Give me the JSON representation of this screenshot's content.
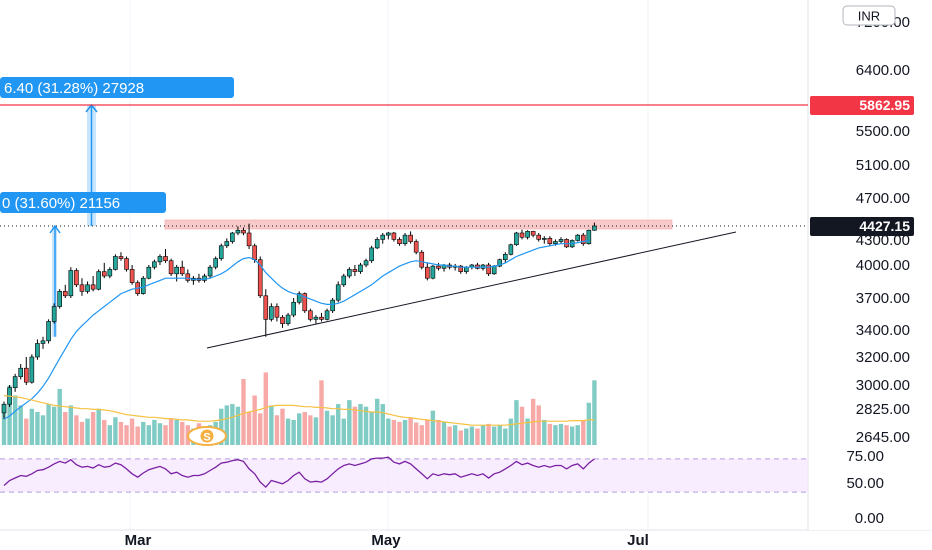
{
  "currency_label": "INR",
  "chart_data": {
    "type": "candlestick",
    "price_axis": {
      "ticks": [
        "7200.00",
        "6400.00",
        "5862.95",
        "5500.00",
        "5100.00",
        "4700.00",
        "4427.15",
        "4300.00",
        "4000.00",
        "3700.00",
        "3400.00",
        "3200.00",
        "3000.00",
        "2825.00",
        "2645.00"
      ],
      "range": [
        2600,
        7400
      ]
    },
    "rsi_axis": {
      "ticks": [
        "75.00",
        "50.00",
        "0.00"
      ],
      "band": [
        30,
        70
      ]
    },
    "date_ticks": [
      "Mar",
      "May",
      "Jul"
    ],
    "resistance_level": {
      "value": 5862.95,
      "label": "5862.95",
      "color": "#f23645"
    },
    "current_price": {
      "value": 4427.15,
      "label": "4427.15"
    },
    "measure_top": {
      "text": "6.40 (31.28%) 27928"
    },
    "measure_bottom": {
      "text": "0 (31.60%) 21156"
    },
    "split_marker": {
      "text": "S"
    },
    "colors": {
      "up": "#26a69a",
      "down": "#ef5350",
      "ma": "#2196f3",
      "vol_ma": "#f5c242",
      "rsi": "#7b1fa2",
      "zone": "#f8c4c4"
    },
    "candles": [
      [
        2800,
        2880,
        2760,
        2860
      ],
      [
        2860,
        3000,
        2840,
        2980
      ],
      [
        2980,
        3080,
        2950,
        3060
      ],
      [
        3060,
        3150,
        3040,
        3120
      ],
      [
        3120,
        3200,
        3000,
        3020
      ],
      [
        3020,
        3220,
        3010,
        3200
      ],
      [
        3200,
        3330,
        3180,
        3300
      ],
      [
        3300,
        3350,
        3260,
        3320
      ],
      [
        3320,
        3500,
        3300,
        3480
      ],
      [
        3480,
        3650,
        3460,
        3620
      ],
      [
        3620,
        3780,
        3600,
        3760
      ],
      [
        3760,
        3820,
        3700,
        3720
      ],
      [
        3720,
        3980,
        3700,
        3950
      ],
      [
        3950,
        3970,
        3800,
        3820
      ],
      [
        3820,
        3880,
        3720,
        3760
      ],
      [
        3760,
        3850,
        3740,
        3820
      ],
      [
        3820,
        3900,
        3760,
        3780
      ],
      [
        3780,
        3960,
        3770,
        3940
      ],
      [
        3940,
        4020,
        3880,
        3900
      ],
      [
        3900,
        3980,
        3880,
        3960
      ],
      [
        3960,
        4100,
        3950,
        4080
      ],
      [
        4080,
        4120,
        4040,
        4060
      ],
      [
        4060,
        4080,
        3940,
        3960
      ],
      [
        3960,
        4000,
        3820,
        3840
      ],
      [
        3840,
        3860,
        3720,
        3740
      ],
      [
        3740,
        3900,
        3730,
        3880
      ],
      [
        3880,
        4000,
        3870,
        3980
      ],
      [
        3980,
        4050,
        3960,
        4030
      ],
      [
        4030,
        4100,
        4000,
        4080
      ],
      [
        4080,
        4150,
        4020,
        4040
      ],
      [
        4040,
        4060,
        3900,
        3920
      ],
      [
        3920,
        4000,
        3850,
        3980
      ],
      [
        3980,
        4040,
        3900,
        3920
      ],
      [
        3920,
        3960,
        3840,
        3860
      ],
      [
        3860,
        3900,
        3820,
        3880
      ],
      [
        3880,
        3920,
        3840,
        3860
      ],
      [
        3860,
        3920,
        3840,
        3900
      ],
      [
        3900,
        4000,
        3880,
        3980
      ],
      [
        3980,
        4080,
        3960,
        4060
      ],
      [
        4060,
        4200,
        4040,
        4180
      ],
      [
        4180,
        4250,
        4160,
        4220
      ],
      [
        4220,
        4320,
        4200,
        4300
      ],
      [
        4300,
        4420,
        4280,
        4350
      ],
      [
        4350,
        4400,
        4280,
        4300
      ],
      [
        4300,
        4450,
        4150,
        4180
      ],
      [
        4180,
        4200,
        4020,
        4050
      ],
      [
        4050,
        4080,
        3700,
        3720
      ],
      [
        3720,
        3780,
        3350,
        3500
      ],
      [
        3500,
        3650,
        3480,
        3620
      ],
      [
        3620,
        3650,
        3480,
        3520
      ],
      [
        3520,
        3540,
        3420,
        3460
      ],
      [
        3460,
        3560,
        3440,
        3540
      ],
      [
        3540,
        3700,
        3520,
        3660
      ],
      [
        3660,
        3760,
        3640,
        3740
      ],
      [
        3740,
        3750,
        3560,
        3580
      ],
      [
        3580,
        3600,
        3480,
        3500
      ],
      [
        3500,
        3540,
        3460,
        3520
      ],
      [
        3520,
        3560,
        3480,
        3500
      ],
      [
        3500,
        3600,
        3490,
        3580
      ],
      [
        3580,
        3700,
        3560,
        3680
      ],
      [
        3680,
        3850,
        3660,
        3820
      ],
      [
        3820,
        3920,
        3800,
        3900
      ],
      [
        3900,
        3980,
        3880,
        3960
      ],
      [
        3960,
        4000,
        3900,
        3940
      ],
      [
        3940,
        4020,
        3920,
        4000
      ],
      [
        4000,
        4060,
        3980,
        4040
      ],
      [
        4040,
        4180,
        4020,
        4160
      ],
      [
        4160,
        4260,
        4150,
        4240
      ],
      [
        4240,
        4300,
        4200,
        4280
      ],
      [
        4280,
        4320,
        4240,
        4300
      ],
      [
        4300,
        4320,
        4220,
        4240
      ],
      [
        4240,
        4260,
        4180,
        4200
      ],
      [
        4200,
        4300,
        4180,
        4280
      ],
      [
        4280,
        4330,
        4200,
        4220
      ],
      [
        4220,
        4240,
        4100,
        4120
      ],
      [
        4120,
        4140,
        3960,
        3980
      ],
      [
        3980,
        4020,
        3860,
        3880
      ],
      [
        3880,
        4000,
        3870,
        3990
      ],
      [
        3990,
        4020,
        3950,
        3970
      ],
      [
        3970,
        4010,
        3940,
        4000
      ],
      [
        4000,
        4020,
        3960,
        3980
      ],
      [
        3980,
        4010,
        3950,
        3990
      ],
      [
        3990,
        4000,
        3920,
        3940
      ],
      [
        3940,
        3990,
        3920,
        3980
      ],
      [
        3980,
        4010,
        3960,
        4000
      ],
      [
        4000,
        4020,
        3960,
        3970
      ],
      [
        3970,
        4010,
        3950,
        4000
      ],
      [
        4000,
        4020,
        3900,
        3920
      ],
      [
        3920,
        4000,
        3910,
        3990
      ],
      [
        3990,
        4060,
        3980,
        4050
      ],
      [
        4050,
        4120,
        4020,
        4100
      ],
      [
        4100,
        4200,
        4090,
        4190
      ],
      [
        4190,
        4320,
        4180,
        4300
      ],
      [
        4300,
        4360,
        4240,
        4260
      ],
      [
        4260,
        4350,
        4240,
        4330
      ],
      [
        4330,
        4340,
        4260,
        4280
      ],
      [
        4280,
        4300,
        4220,
        4240
      ],
      [
        4240,
        4270,
        4200,
        4250
      ],
      [
        4250,
        4270,
        4180,
        4200
      ],
      [
        4200,
        4240,
        4180,
        4220
      ],
      [
        4220,
        4260,
        4200,
        4240
      ],
      [
        4240,
        4250,
        4160,
        4170
      ],
      [
        4170,
        4240,
        4160,
        4230
      ],
      [
        4230,
        4290,
        4220,
        4280
      ],
      [
        4280,
        4300,
        4180,
        4200
      ],
      [
        4200,
        4360,
        4190,
        4350
      ],
      [
        4350,
        4460,
        4340,
        4427
      ]
    ],
    "moving_average": [
      2760,
      2780,
      2810,
      2840,
      2870,
      2900,
      2940,
      2990,
      3050,
      3120,
      3190,
      3260,
      3330,
      3390,
      3440,
      3490,
      3540,
      3580,
      3620,
      3660,
      3700,
      3740,
      3760,
      3780,
      3790,
      3800,
      3820,
      3840,
      3860,
      3880,
      3880,
      3880,
      3880,
      3880,
      3870,
      3870,
      3870,
      3880,
      3900,
      3920,
      3950,
      3990,
      4030,
      4060,
      4070,
      4050,
      4000,
      3930,
      3880,
      3830,
      3790,
      3760,
      3740,
      3730,
      3710,
      3690,
      3670,
      3650,
      3640,
      3640,
      3650,
      3670,
      3700,
      3730,
      3760,
      3790,
      3820,
      3860,
      3900,
      3930,
      3960,
      3990,
      4010,
      4030,
      4040,
      4030,
      4020,
      4010,
      4000,
      4000,
      3990,
      3990,
      3980,
      3980,
      3980,
      3980,
      3980,
      3980,
      3990,
      4000,
      4020,
      4050,
      4080,
      4100,
      4120,
      4140,
      4160,
      4170,
      4180,
      4190,
      4200,
      4200,
      4200,
      4210,
      4220,
      4230
    ],
    "volume": [
      0.55,
      0.9,
      0.75,
      0.6,
      0.4,
      0.55,
      0.5,
      0.45,
      0.62,
      0.58,
      0.85,
      0.5,
      0.6,
      0.45,
      0.35,
      0.4,
      0.5,
      0.55,
      0.38,
      0.3,
      0.42,
      0.35,
      0.3,
      0.4,
      0.28,
      0.35,
      0.3,
      0.38,
      0.33,
      0.3,
      0.4,
      0.38,
      0.35,
      0.3,
      0.25,
      0.33,
      0.28,
      0.3,
      0.35,
      0.55,
      0.6,
      0.62,
      0.58,
      1.0,
      0.5,
      0.75,
      0.48,
      1.1,
      0.6,
      0.45,
      0.55,
      0.4,
      0.38,
      0.48,
      0.5,
      0.45,
      0.42,
      0.98,
      0.52,
      0.45,
      0.62,
      0.4,
      0.68,
      0.58,
      0.62,
      0.58,
      0.5,
      0.7,
      0.62,
      0.4,
      0.38,
      0.35,
      0.38,
      0.42,
      0.34,
      0.3,
      0.38,
      0.52,
      0.38,
      0.35,
      0.28,
      0.3,
      0.22,
      0.25,
      0.28,
      0.25,
      0.3,
      0.32,
      0.28,
      0.3,
      0.25,
      0.4,
      0.68,
      0.58,
      0.4,
      0.7,
      0.6,
      0.38,
      0.32,
      0.3,
      0.32,
      0.3,
      0.28,
      0.3,
      0.38,
      0.64,
      0.98
    ],
    "volume_ma": [
      0.75,
      0.74,
      0.73,
      0.72,
      0.7,
      0.68,
      0.66,
      0.64,
      0.62,
      0.6,
      0.59,
      0.58,
      0.57,
      0.56,
      0.55,
      0.55,
      0.54,
      0.54,
      0.53,
      0.52,
      0.5,
      0.48,
      0.46,
      0.45,
      0.44,
      0.43,
      0.42,
      0.42,
      0.41,
      0.4,
      0.4,
      0.39,
      0.38,
      0.38,
      0.37,
      0.36,
      0.36,
      0.36,
      0.37,
      0.38,
      0.4,
      0.42,
      0.45,
      0.48,
      0.5,
      0.52,
      0.54,
      0.57,
      0.59,
      0.6,
      0.6,
      0.6,
      0.6,
      0.59,
      0.58,
      0.58,
      0.57,
      0.57,
      0.56,
      0.55,
      0.55,
      0.54,
      0.54,
      0.53,
      0.52,
      0.51,
      0.5,
      0.5,
      0.49,
      0.47,
      0.45,
      0.43,
      0.42,
      0.41,
      0.4,
      0.39,
      0.38,
      0.37,
      0.36,
      0.35,
      0.34,
      0.33,
      0.32,
      0.31,
      0.3,
      0.3,
      0.3,
      0.3,
      0.3,
      0.3,
      0.3,
      0.31,
      0.32,
      0.33,
      0.34,
      0.35,
      0.36,
      0.36,
      0.36,
      0.36,
      0.36,
      0.36,
      0.37,
      0.37,
      0.37,
      0.38,
      0.38
    ],
    "rsi": [
      38,
      44,
      47,
      50,
      49,
      52,
      56,
      57,
      60,
      64,
      67,
      65,
      69,
      63,
      60,
      61,
      59,
      63,
      60,
      61,
      65,
      63,
      58,
      52,
      48,
      53,
      57,
      59,
      61,
      58,
      52,
      54,
      50,
      48,
      50,
      50,
      52,
      56,
      60,
      65,
      66,
      68,
      69,
      67,
      58,
      52,
      42,
      36,
      44,
      42,
      40,
      44,
      50,
      54,
      46,
      42,
      43,
      42,
      46,
      52,
      58,
      62,
      64,
      62,
      64,
      66,
      70,
      71,
      71,
      72,
      66,
      64,
      67,
      64,
      58,
      52,
      46,
      52,
      50,
      52,
      51,
      52,
      48,
      50,
      52,
      50,
      52,
      47,
      52,
      54,
      58,
      62,
      67,
      63,
      65,
      62,
      60,
      62,
      60,
      62,
      62,
      58,
      62,
      64,
      58,
      65,
      70
    ]
  }
}
